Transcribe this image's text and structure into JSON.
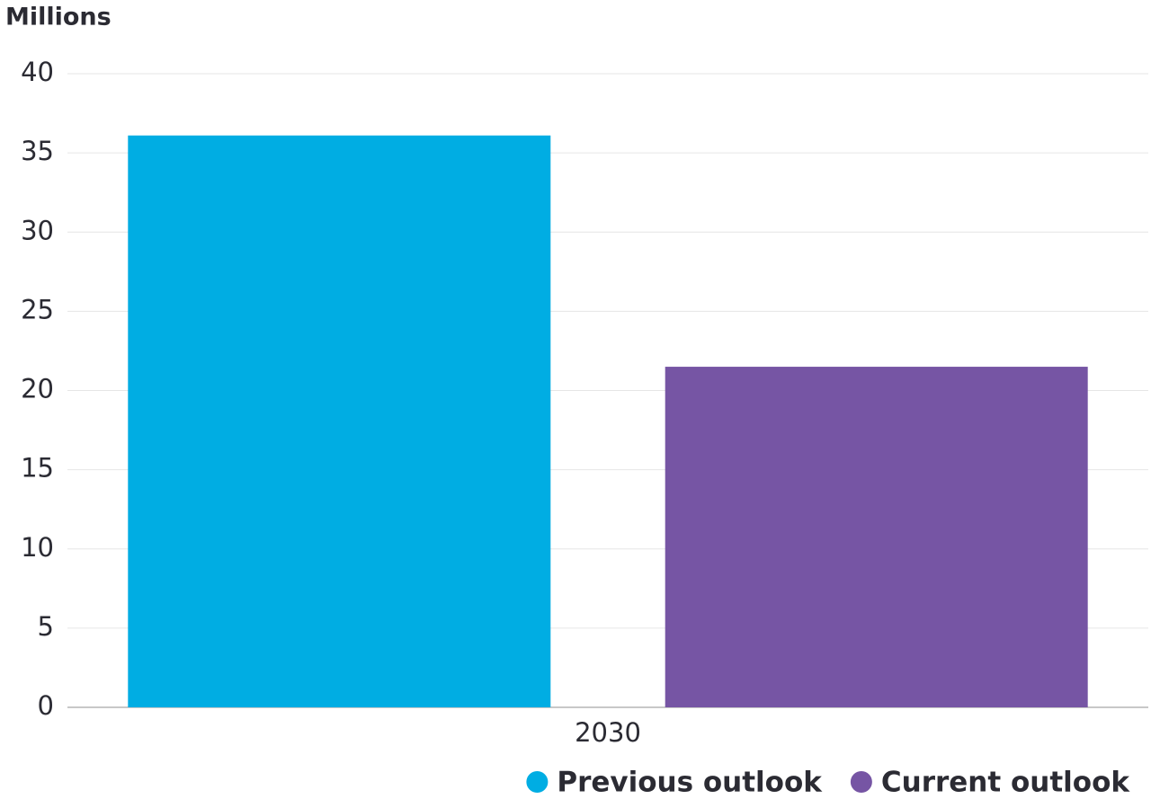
{
  "chart_data": {
    "type": "bar",
    "y_label": "Millions",
    "categories": [
      "2030"
    ],
    "series": [
      {
        "name": "Previous outlook",
        "color": "#00ade3",
        "values": [
          36.1
        ]
      },
      {
        "name": "Current outlook",
        "color": "#7655a4",
        "values": [
          21.5
        ]
      }
    ],
    "ylim": [
      0,
      40
    ],
    "yticks": [
      0,
      5,
      10,
      15,
      20,
      25,
      30,
      35,
      40
    ],
    "grid": true,
    "legend": "bottom-right"
  }
}
